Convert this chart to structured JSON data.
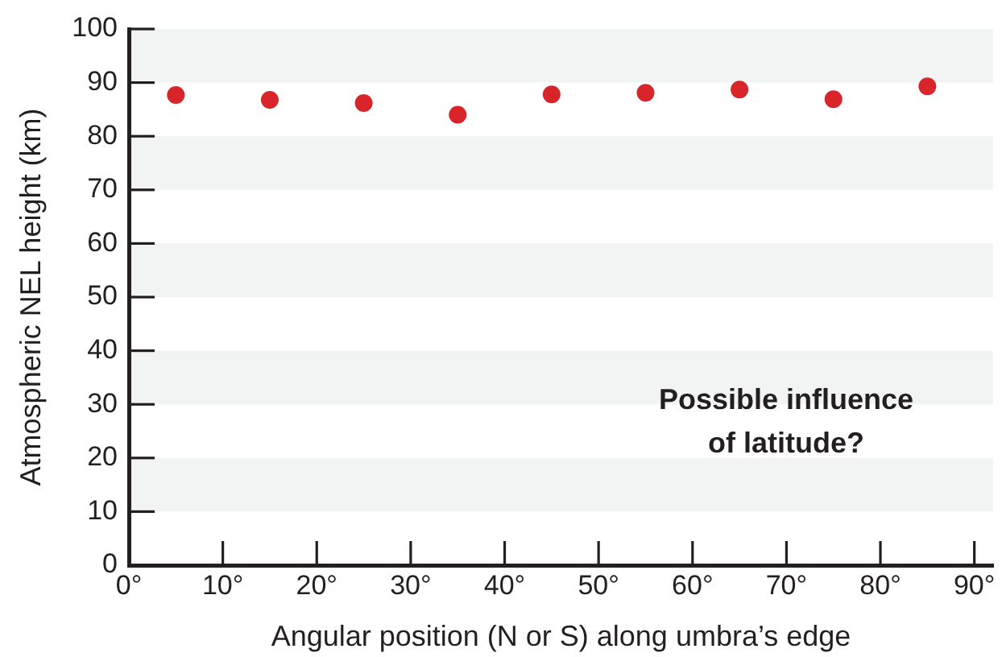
{
  "chart_data": {
    "type": "scatter",
    "xlabel": "Angular position (N or S) along umbra’s edge",
    "ylabel": "Atmospheric NEL height (km)",
    "x": [
      5,
      15,
      25,
      35,
      45,
      55,
      65,
      75,
      85
    ],
    "values": [
      87.7,
      86.8,
      86.2,
      84.0,
      87.8,
      88.1,
      88.7,
      86.9,
      89.3
    ],
    "color": "#d7252b",
    "marker": "circle",
    "xlim": [
      0,
      92
    ],
    "xticks": [
      {
        "value": 0,
        "label": "0°"
      },
      {
        "value": 10,
        "label": "10°"
      },
      {
        "value": 20,
        "label": "20°"
      },
      {
        "value": 30,
        "label": "30°"
      },
      {
        "value": 40,
        "label": "40°"
      },
      {
        "value": 50,
        "label": "50°"
      },
      {
        "value": 60,
        "label": "60°"
      },
      {
        "value": 70,
        "label": "70°"
      },
      {
        "value": 80,
        "label": "80°"
      },
      {
        "value": 90,
        "label": "90°"
      }
    ],
    "ylim": [
      0,
      100
    ],
    "yticks": [
      0,
      10,
      20,
      30,
      40,
      50,
      60,
      70,
      80,
      90,
      100
    ],
    "bands": [
      {
        "axis": "y",
        "from": 10,
        "to": 20,
        "color": "#f2f3f3"
      },
      {
        "axis": "y",
        "from": 30,
        "to": 40,
        "color": "#f2f3f3"
      },
      {
        "axis": "y",
        "from": 50,
        "to": 60,
        "color": "#f2f3f3"
      },
      {
        "axis": "y",
        "from": 70,
        "to": 80,
        "color": "#f2f3f3"
      },
      {
        "axis": "y",
        "from": 90,
        "to": 100,
        "color": "#f2f3f3"
      }
    ],
    "annotations": [
      "Possible influence of latitude?"
    ]
  }
}
